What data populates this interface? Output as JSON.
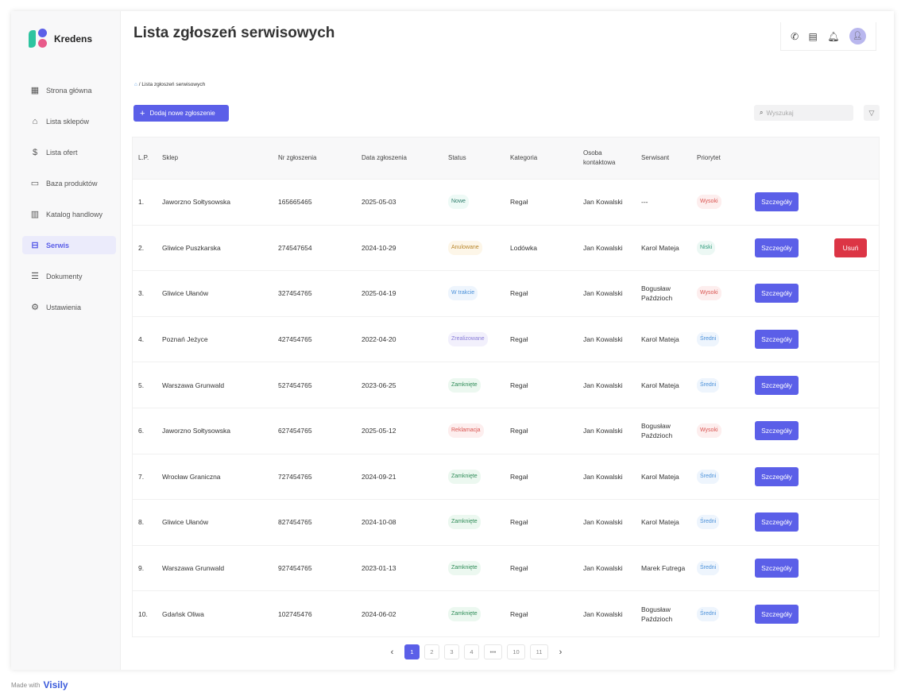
{
  "app": {
    "name": "Kredens"
  },
  "sidebar": {
    "items": [
      {
        "label": "Strona główna",
        "icon": "dashboard-icon"
      },
      {
        "label": "Lista sklepów",
        "icon": "store-icon"
      },
      {
        "label": "Lista ofert",
        "icon": "dollar-icon"
      },
      {
        "label": "Baza produktów",
        "icon": "archive-icon"
      },
      {
        "label": "Katalog handlowy",
        "icon": "catalog-icon"
      },
      {
        "label": "Serwis",
        "icon": "toolbox-icon",
        "active": true
      },
      {
        "label": "Dokumenty",
        "icon": "document-icon"
      },
      {
        "label": "Ustawienia",
        "icon": "gear-icon"
      }
    ]
  },
  "header": {
    "title": "Lista zgłoszeń serwisowych"
  },
  "breadcrumb": {
    "current": "/ Lista zgłoszeń serwisowych"
  },
  "toolbar": {
    "add_label": "Dodaj nowe zgłoszenie",
    "search_placeholder": "Wyszukaj"
  },
  "table": {
    "headers": [
      "L.P.",
      "Sklep",
      "Nr zgłoszenia",
      "Data zgłoszenia",
      "Status",
      "Kategoria",
      "Osoba kontaktowa",
      "Serwisant",
      "Priorytet"
    ],
    "details_label": "Szczegóły",
    "delete_label": "Usuń",
    "rows": [
      {
        "lp": "1.",
        "shop": "Jaworzno Sołtysowska",
        "nr": "165665465",
        "date": "2025-05-03",
        "status": "Nowe",
        "cat": "Regał",
        "contact": "Jan Kowalski",
        "tech": "---",
        "prio": "Wysoki"
      },
      {
        "lp": "2.",
        "shop": "Gliwice Puszkarska",
        "nr": "274547654",
        "date": "2024-10-29",
        "status": "Anulowane",
        "cat": "Lodówka",
        "contact": "Jan Kowalski",
        "tech": "Karol Mateja",
        "prio": "Niski",
        "deletable": true
      },
      {
        "lp": "3.",
        "shop": "Gliwice Ułanów",
        "nr": "327454765",
        "date": "2025-04-19",
        "status": "W trakcie",
        "cat": "Regał",
        "contact": "Jan Kowalski",
        "tech": "Bogusław Paździoch",
        "prio": "Wysoki"
      },
      {
        "lp": "4.",
        "shop": "Poznań Jeżyce",
        "nr": "427454765",
        "date": "2022-04-20",
        "status": "Zrealizowane",
        "cat": "Regał",
        "contact": "Jan Kowalski",
        "tech": "Karol Mateja",
        "prio": "Średni"
      },
      {
        "lp": "5.",
        "shop": "Warszawa Grunwald",
        "nr": "527454765",
        "date": "2023-06-25",
        "status": "Zamknięte",
        "cat": "Regał",
        "contact": "Jan Kowalski",
        "tech": "Karol Mateja",
        "prio": "Średni"
      },
      {
        "lp": "6.",
        "shop": "Jaworzno Sołtysowska",
        "nr": "627454765",
        "date": "2025-05-12",
        "status": "Reklamacja",
        "cat": "Regał",
        "contact": "Jan Kowalski",
        "tech": "Bogusław Paździoch",
        "prio": "Wysoki"
      },
      {
        "lp": "7.",
        "shop": "Wrocław Graniczna",
        "nr": "727454765",
        "date": "2024-09-21",
        "status": "Zamknięte",
        "cat": "Regał",
        "contact": "Jan Kowalski",
        "tech": "Karol Mateja",
        "prio": "Średni"
      },
      {
        "lp": "8.",
        "shop": "Gliwice Ułanów",
        "nr": "827454765",
        "date": "2024-10-08",
        "status": "Zamknięte",
        "cat": "Regał",
        "contact": "Jan Kowalski",
        "tech": "Karol Mateja",
        "prio": "Średni"
      },
      {
        "lp": "9.",
        "shop": "Warszawa Grunwald",
        "nr": "927454765",
        "date": "2023-01-13",
        "status": "Zamknięte",
        "cat": "Regał",
        "contact": "Jan Kowalski",
        "tech": "Marek Futrega",
        "prio": "Średni"
      },
      {
        "lp": "10.",
        "shop": "Gdańsk Oliwa",
        "nr": "102745476",
        "date": "2024-06-02",
        "status": "Zamknięte",
        "cat": "Regał",
        "contact": "Jan Kowalski",
        "tech": "Bogusław Paździoch",
        "prio": "Średni"
      }
    ]
  },
  "status_colors": {
    "Nowe": [
      "#2e7d6b",
      "#eefaf6"
    ],
    "Anulowane": [
      "#b8862b",
      "#fdf6e8"
    ],
    "W trakcie": [
      "#4a90d9",
      "#eef5fd"
    ],
    "Zrealizowane": [
      "#8a7ed8",
      "#f2f0fc"
    ],
    "Zamknięte": [
      "#2e8b57",
      "#ecf8f0"
    ],
    "Reklamacja": [
      "#d9534f",
      "#fdeeee"
    ]
  },
  "priority_colors": {
    "Wysoki": [
      "#d9534f",
      "#fdeeee"
    ],
    "Niski": [
      "#2e9b7b",
      "#ecf8f4"
    ],
    "Średni": [
      "#4a90d9",
      "#eef5fd"
    ]
  },
  "pagination": {
    "pages": [
      "1",
      "2",
      "3",
      "4",
      "•••",
      "10",
      "11"
    ],
    "current": "1"
  },
  "footer": {
    "made_with": "Made with",
    "brand": "Visily"
  }
}
